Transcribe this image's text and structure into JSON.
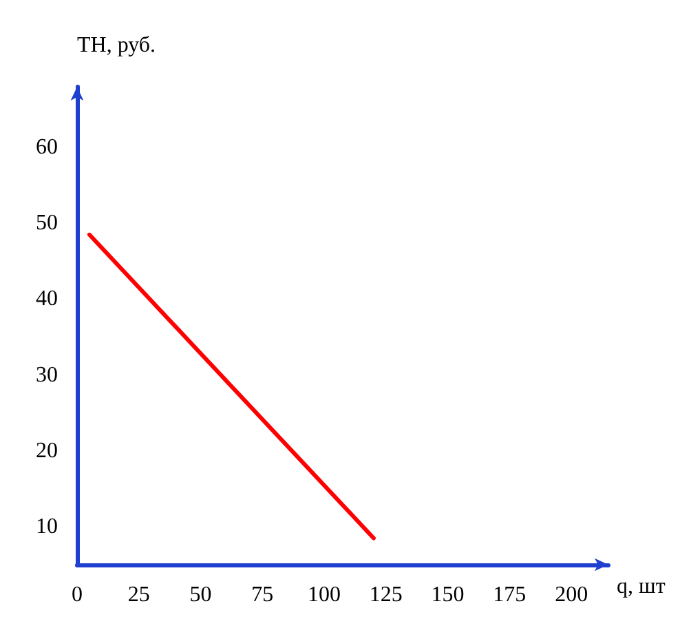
{
  "chart_data": {
    "type": "line",
    "xlabel": "q, шт",
    "ylabel": "TH, руб.",
    "x": [
      5,
      120
    ],
    "series": [
      {
        "color": "#ff0000",
        "values": [
          48.5,
          8.5
        ]
      }
    ],
    "xlim": [
      0,
      215
    ],
    "xticks": [
      0,
      25,
      50,
      75,
      100,
      125,
      150,
      175,
      200
    ],
    "ylim": [
      5,
      68
    ],
    "yticks": [
      10,
      20,
      30,
      40,
      50,
      60
    ],
    "grid": false,
    "marker": "none",
    "line_style": "solid"
  }
}
